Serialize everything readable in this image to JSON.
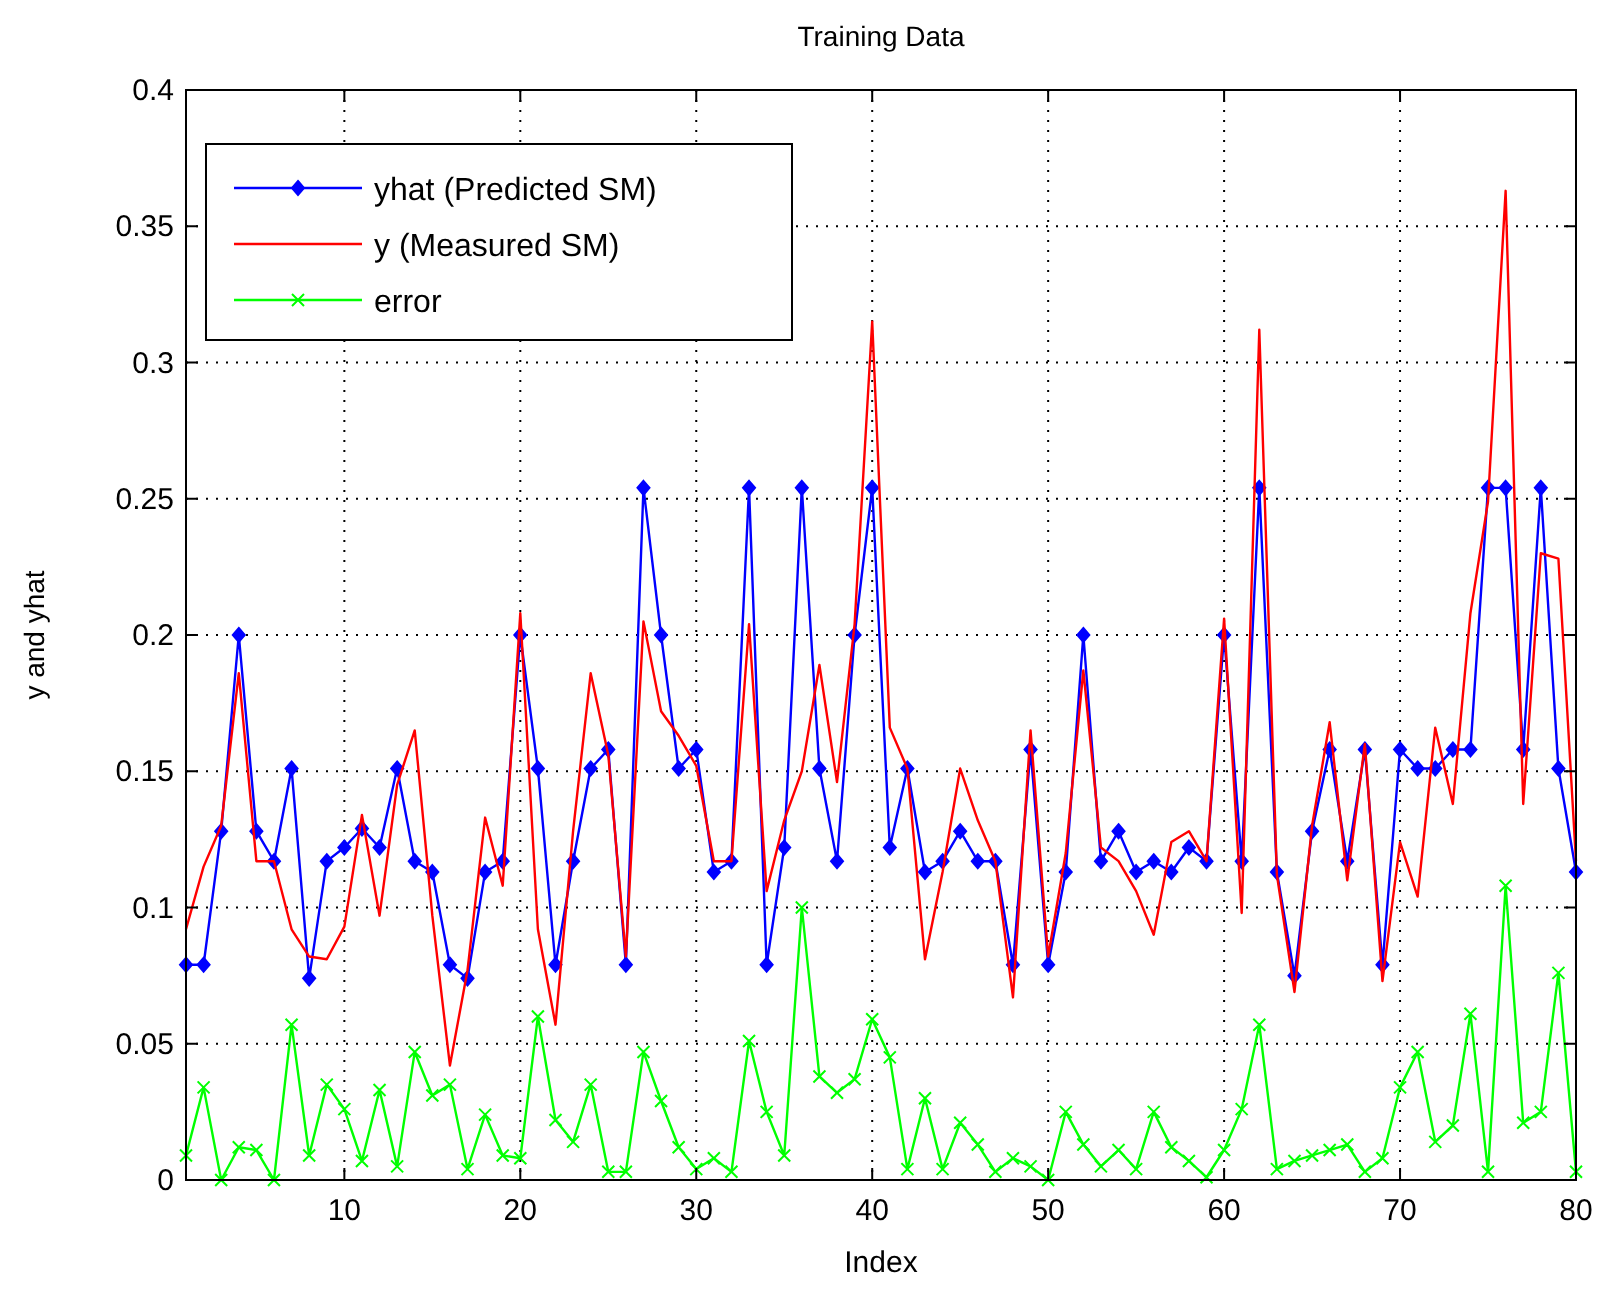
{
  "chart_data": {
    "type": "line",
    "title": "Training Data",
    "xlabel": "Index",
    "ylabel": "y and yhat",
    "x": [
      1,
      2,
      3,
      4,
      5,
      6,
      7,
      8,
      9,
      10,
      11,
      12,
      13,
      14,
      15,
      16,
      17,
      18,
      19,
      20,
      21,
      22,
      23,
      24,
      25,
      26,
      27,
      28,
      29,
      30,
      31,
      32,
      33,
      34,
      35,
      36,
      37,
      38,
      39,
      40,
      41,
      42,
      43,
      44,
      45,
      46,
      47,
      48,
      49,
      50,
      51,
      52,
      53,
      54,
      55,
      56,
      57,
      58,
      59,
      60,
      61,
      62,
      63,
      64,
      65,
      66,
      67,
      68,
      69,
      70,
      71,
      72,
      73,
      74,
      75,
      76,
      77,
      78,
      79,
      80
    ],
    "xlim": [
      1,
      80
    ],
    "xticks": [
      10,
      20,
      30,
      40,
      50,
      60,
      70,
      80
    ],
    "ylim": [
      0,
      0.4
    ],
    "yticks": [
      0,
      0.05,
      0.1,
      0.15,
      0.2,
      0.25,
      0.3,
      0.35,
      0.4
    ],
    "grid": true,
    "legend": "top left",
    "line_style": "solid",
    "series": [
      {
        "name": "yhat (Predicted SM)",
        "color": "#0000ff",
        "marker": "diamond",
        "values": [
          0.079,
          0.079,
          0.128,
          0.2,
          0.128,
          0.117,
          0.151,
          0.074,
          0.117,
          0.122,
          0.129,
          0.122,
          0.151,
          0.117,
          0.113,
          0.079,
          0.074,
          0.113,
          0.117,
          0.2,
          0.151,
          0.079,
          0.117,
          0.151,
          0.158,
          0.079,
          0.254,
          0.2,
          0.151,
          0.158,
          0.113,
          0.117,
          0.254,
          0.079,
          0.122,
          0.254,
          0.151,
          0.117,
          0.2,
          0.254,
          0.122,
          0.151,
          0.113,
          0.117,
          0.128,
          0.117,
          0.117,
          0.079,
          0.158,
          0.079,
          0.113,
          0.2,
          0.117,
          0.128,
          0.113,
          0.117,
          0.113,
          0.122,
          0.117,
          0.2,
          0.117,
          0.254,
          0.113,
          0.075,
          0.128,
          0.158,
          0.117,
          0.158,
          0.079,
          0.158,
          0.151,
          0.151,
          0.158,
          0.158,
          0.254,
          0.254,
          0.158,
          0.254,
          0.151,
          0.113
        ]
      },
      {
        "name": "y (Measured SM)",
        "color": "#ff0000",
        "marker": "none",
        "values": [
          0.092,
          0.115,
          0.13,
          0.186,
          0.117,
          0.117,
          0.092,
          0.082,
          0.081,
          0.093,
          0.134,
          0.097,
          0.145,
          0.165,
          0.097,
          0.042,
          0.077,
          0.133,
          0.108,
          0.208,
          0.092,
          0.057,
          0.128,
          0.186,
          0.156,
          0.082,
          0.205,
          0.172,
          0.163,
          0.152,
          0.117,
          0.117,
          0.204,
          0.106,
          0.132,
          0.15,
          0.189,
          0.146,
          0.204,
          0.315,
          0.166,
          0.151,
          0.081,
          0.113,
          0.151,
          0.132,
          0.117,
          0.067,
          0.165,
          0.082,
          0.12,
          0.187,
          0.122,
          0.117,
          0.106,
          0.09,
          0.124,
          0.128,
          0.117,
          0.206,
          0.098,
          0.312,
          0.112,
          0.069,
          0.13,
          0.168,
          0.11,
          0.16,
          0.073,
          0.124,
          0.104,
          0.166,
          0.138,
          0.208,
          0.249,
          0.363,
          0.138,
          0.23,
          0.228,
          0.117
        ]
      },
      {
        "name": "error",
        "color": "#00ff00",
        "marker": "cross",
        "values": [
          0.009,
          0.034,
          0,
          0.012,
          0.011,
          0,
          0.057,
          0.009,
          0.035,
          0.026,
          0.007,
          0.033,
          0.005,
          0.047,
          0.031,
          0.035,
          0.004,
          0.024,
          0.009,
          0.008,
          0.06,
          0.022,
          0.014,
          0.035,
          0.003,
          0.003,
          0.047,
          0.029,
          0.012,
          0.004,
          0.008,
          0.003,
          0.051,
          0.025,
          0.009,
          0.1,
          0.038,
          0.032,
          0.037,
          0.059,
          0.045,
          0.004,
          0.03,
          0.004,
          0.021,
          0.013,
          0.003,
          0.008,
          0.005,
          0,
          0.025,
          0.013,
          0.005,
          0.011,
          0.004,
          0.025,
          0.012,
          0.007,
          0.001,
          0.011,
          0.026,
          0.057,
          0.004,
          0.007,
          0.009,
          0.011,
          0.013,
          0.003,
          0.008,
          0.034,
          0.047,
          0.014,
          0.02,
          0.061,
          0.003,
          0.108,
          0.021,
          0.025,
          0.076,
          0.003
        ]
      }
    ]
  }
}
